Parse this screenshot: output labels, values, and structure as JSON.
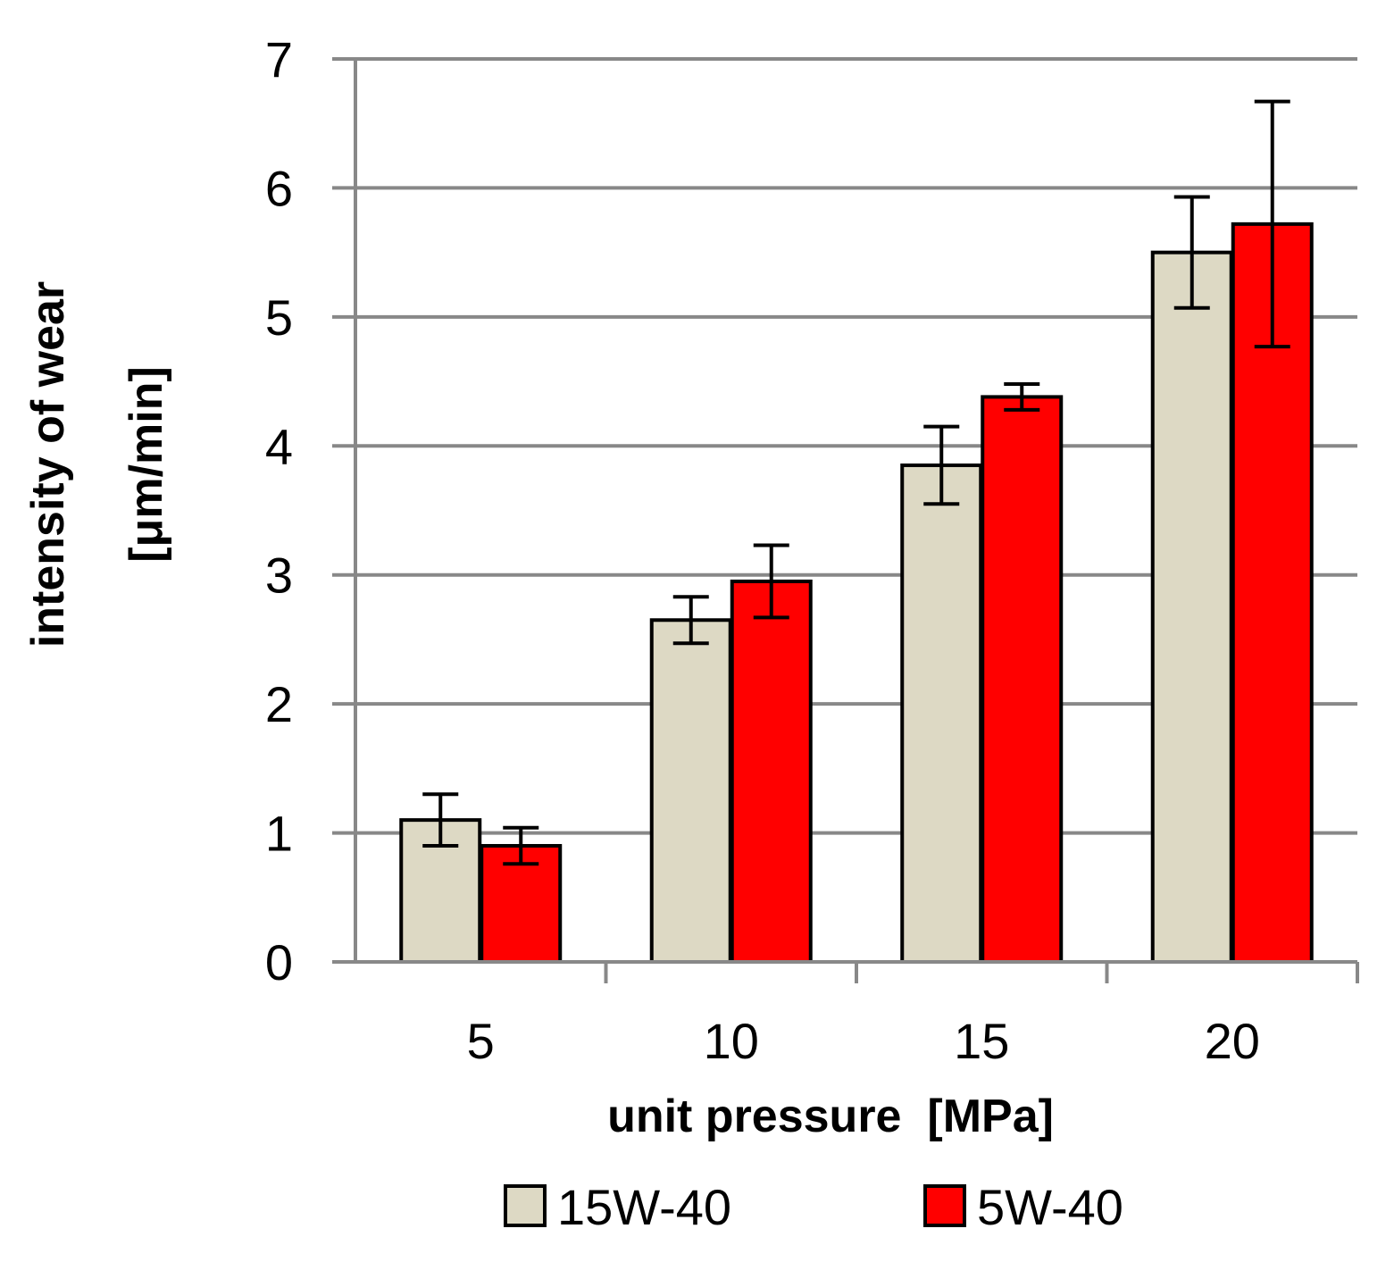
{
  "chart_data": {
    "type": "bar",
    "title": "",
    "xlabel": "unit pressure  [MPa]",
    "ylabel_line1": "intensity of wear",
    "ylabel_line2": "[μm/min]",
    "categories": [
      "5",
      "10",
      "15",
      "20"
    ],
    "ylim": [
      0,
      7
    ],
    "yticks": [
      "0",
      "1",
      "2",
      "3",
      "4",
      "5",
      "6",
      "7"
    ],
    "grid": true,
    "legend_position": "bottom",
    "series": [
      {
        "name": "15W-40",
        "color": "#ddd9c4",
        "values": [
          1.1,
          2.65,
          3.85,
          5.5
        ],
        "errors": [
          0.2,
          0.18,
          0.3,
          0.43
        ]
      },
      {
        "name": "5W-40",
        "color": "#ff0000",
        "values": [
          0.9,
          2.95,
          4.38,
          5.72
        ],
        "errors": [
          0.14,
          0.28,
          0.1,
          0.95
        ]
      }
    ]
  }
}
